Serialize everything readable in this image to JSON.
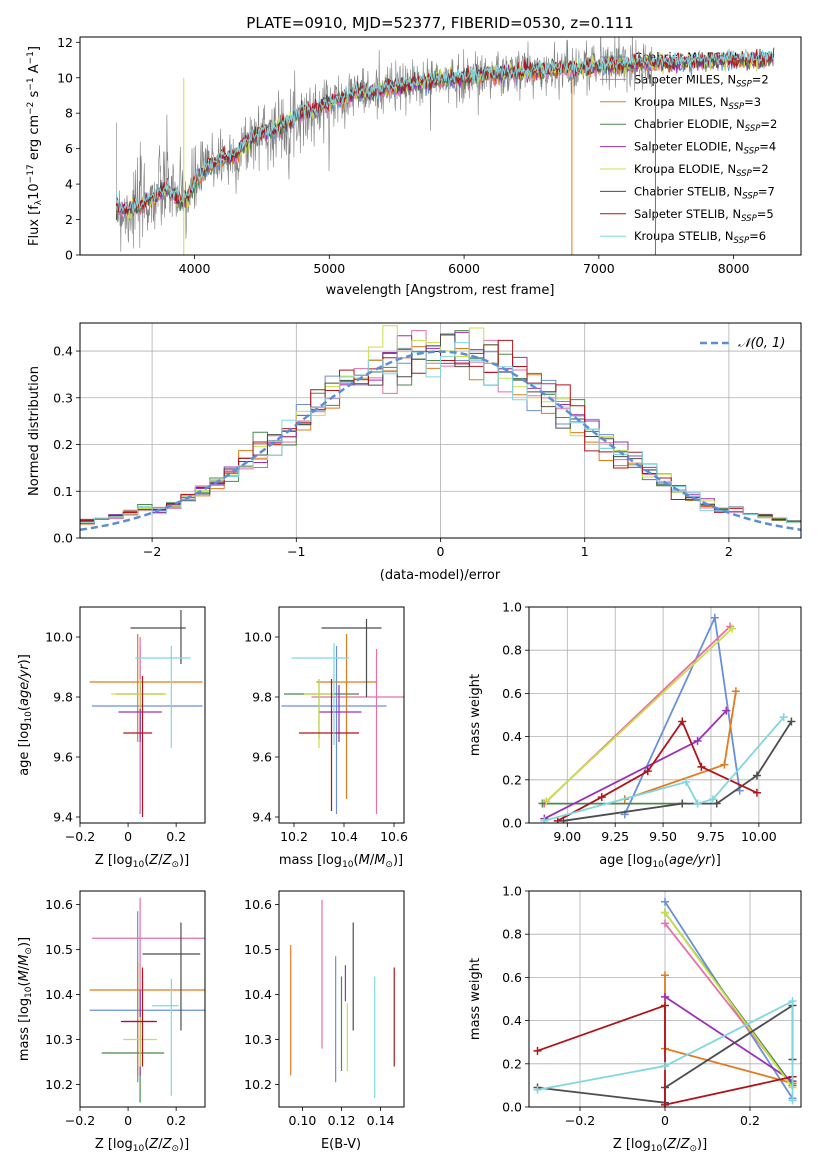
{
  "chart_data": [
    {
      "id": "spectrum",
      "type": "line",
      "title": "PLATE=0910, MJD=52377, FIBERID=0530, z=0.111",
      "xlabel": "wavelength [Angstrom, rest frame]",
      "ylabel": "Flux [f_λ10^-17 erg cm^-2 s^-1 A^-1]",
      "xlim": [
        3150,
        8500
      ],
      "ylim": [
        0,
        12.3
      ],
      "xticks": [
        4000,
        5000,
        6000,
        7000,
        8000
      ],
      "yticks": [
        0,
        2,
        4,
        6,
        8,
        10,
        12
      ],
      "spectrum": {
        "name": "data",
        "color": "#7f7f7f",
        "x": [
          3420,
          3500,
          3600,
          3700,
          3800,
          3900,
          3950,
          4000,
          4100,
          4200,
          4300,
          4400,
          4500,
          4600,
          4700,
          4800,
          4900,
          5000,
          5100,
          5200,
          5300,
          5400,
          5500,
          5600,
          5700,
          5800,
          5900,
          6000,
          6100,
          6200,
          6300,
          6400,
          6500,
          6600,
          6700,
          6800,
          6900,
          7000,
          7100,
          7200,
          7300,
          7400
        ],
        "y": [
          2.8,
          2.4,
          2.9,
          3.2,
          4.0,
          3.1,
          3.2,
          4.0,
          5.2,
          5.5,
          5.4,
          6.4,
          7.0,
          7.0,
          7.4,
          8.0,
          8.0,
          8.6,
          8.9,
          9.3,
          9.0,
          9.5,
          9.4,
          9.6,
          9.8,
          9.9,
          9.8,
          10.0,
          10.1,
          10.3,
          10.1,
          10.4,
          10.5,
          10.3,
          10.6,
          10.5,
          10.7,
          10.8,
          10.9,
          10.7,
          11.0,
          10.8
        ]
      },
      "model": {
        "x": [
          3420,
          3500,
          3600,
          3700,
          3800,
          3900,
          3950,
          4000,
          4100,
          4200,
          4300,
          4400,
          4500,
          4600,
          4700,
          4800,
          4900,
          5000,
          5100,
          5200,
          5300,
          5400,
          5500,
          5600,
          5700,
          5800,
          5900,
          6000,
          6100,
          6200,
          6300,
          6400,
          6500,
          6600,
          6700,
          6800,
          6900,
          7000,
          7100,
          7200,
          7300,
          7400,
          7500,
          7600,
          7700,
          7800,
          7900,
          8000,
          8100,
          8200,
          8300
        ],
        "y": [
          2.7,
          2.5,
          2.8,
          3.3,
          3.8,
          3.0,
          3.3,
          4.1,
          5.0,
          5.5,
          5.6,
          6.5,
          6.9,
          7.1,
          7.5,
          8.1,
          8.2,
          8.6,
          8.9,
          9.2,
          9.1,
          9.4,
          9.5,
          9.6,
          9.8,
          9.9,
          9.9,
          10.0,
          10.1,
          10.2,
          10.2,
          10.3,
          10.4,
          10.4,
          10.5,
          10.5,
          10.6,
          10.6,
          10.7,
          10.7,
          10.8,
          10.8,
          10.8,
          10.9,
          10.9,
          10.9,
          11.0,
          11.0,
          11.0,
          11.0,
          11.1
        ]
      },
      "series": [
        {
          "name": "Chabrier MILES, N_SSP=2",
          "label_main": "Chabrier MILES, N",
          "label_sub": "SSP",
          "label_end": "=2",
          "color": "#6a8fdc"
        },
        {
          "name": "Salpeter MILES, N_SSP=2",
          "label_main": "Salpeter MILES, N",
          "label_sub": "SSP",
          "label_end": "=2",
          "color": "#e86fa8"
        },
        {
          "name": "Kroupa MILES, N_SSP=3",
          "label_main": "Kroupa MILES, N",
          "label_sub": "SSP",
          "label_end": "=3",
          "color": "#e07b1f"
        },
        {
          "name": "Chabrier ELODIE, N_SSP=2",
          "label_main": "Chabrier ELODIE, N",
          "label_sub": "SSP",
          "label_end": "=2",
          "color": "#4a8a4a"
        },
        {
          "name": "Salpeter ELODIE, N_SSP=4",
          "label_main": "Salpeter ELODIE, N",
          "label_sub": "SSP",
          "label_end": "=4",
          "color": "#9b30b8"
        },
        {
          "name": "Kroupa ELODIE, N_SSP=2",
          "label_main": "Kroupa ELODIE, N",
          "label_sub": "SSP",
          "label_end": "=2",
          "color": "#c8e04a"
        },
        {
          "name": "Chabrier STELIB, N_SSP=7",
          "label_main": "Chabrier STELIB, N",
          "label_sub": "SSP",
          "label_end": "=7",
          "color": "#4d4d4d"
        },
        {
          "name": "Salpeter STELIB, N_SSP=5",
          "label_main": "Salpeter STELIB, N",
          "label_sub": "SSP",
          "label_end": "=5",
          "color": "#b0141c"
        },
        {
          "name": "Kroupa STELIB, N_SSP=6",
          "label_main": "Kroupa STELIB, N",
          "label_sub": "SSP",
          "label_end": "=6",
          "color": "#7fd8e0"
        }
      ],
      "legend": "right"
    },
    {
      "id": "residuals",
      "type": "histogram",
      "xlabel": "(data-model)/error",
      "ylabel": "Normed distribution",
      "xlim": [
        -2.5,
        2.5
      ],
      "ylim": [
        0,
        0.46
      ],
      "xticks": [
        -2,
        -1,
        0,
        1,
        2
      ],
      "yticks": [
        0.0,
        0.1,
        0.2,
        0.3,
        0.4
      ],
      "grid": true,
      "bin_edges": [
        -2.5,
        -2.4,
        -2.3,
        -2.2,
        -2.1,
        -2.0,
        -1.9,
        -1.8,
        -1.7,
        -1.6,
        -1.5,
        -1.4,
        -1.3,
        -1.2,
        -1.1,
        -1.0,
        -0.9,
        -0.8,
        -0.7,
        -0.6,
        -0.5,
        -0.4,
        -0.3,
        -0.2,
        -0.1,
        0.0,
        0.1,
        0.2,
        0.3,
        0.4,
        0.5,
        0.6,
        0.7,
        0.8,
        0.9,
        1.0,
        1.1,
        1.2,
        1.3,
        1.4,
        1.5,
        1.6,
        1.7,
        1.8,
        1.9,
        2.0,
        2.1,
        2.2,
        2.3,
        2.4,
        2.5
      ],
      "reference": {
        "name": "N(0,1)",
        "label": "𝒩(0, 1)",
        "color": "#5b8ed8"
      },
      "legend": "top-right"
    },
    {
      "id": "age-vs-Z",
      "type": "errorbar",
      "xlabel": "Z [log10(Z/Z⊙)]",
      "ylabel": "age [log10(age/yr)]",
      "xlim": [
        -0.2,
        0.32
      ],
      "ylim": [
        9.38,
        10.1
      ],
      "xticks": [
        -0.2,
        0.0,
        0.2
      ],
      "yticks": [
        9.4,
        9.6,
        9.8,
        10.0
      ],
      "points": [
        {
          "x": 0.05,
          "xerr": [
            0.2,
            0.26
          ],
          "y": 9.77,
          "yerr": [
            0.36,
            0.2
          ]
        },
        {
          "x": 0.05,
          "xerr": [
            0.0,
            0.0
          ],
          "y": 9.93,
          "yerr": [
            0.51,
            0.07
          ]
        },
        {
          "x": 0.04,
          "xerr": [
            0.2,
            0.27
          ],
          "y": 9.85,
          "yerr": [
            0.2,
            0.16
          ]
        },
        {
          "x": 0.05,
          "xerr": [
            0.1,
            0.1
          ],
          "y": 9.81,
          "yerr": [
            0.15,
            0.05
          ]
        },
        {
          "x": 0.05,
          "xerr": [
            0.09,
            0.09
          ],
          "y": 9.75,
          "yerr": [
            0.1,
            0.09
          ]
        },
        {
          "x": 0.05,
          "xerr": [
            0.12,
            0.11
          ],
          "y": 9.81,
          "yerr": [
            0.05,
            0.05
          ]
        },
        {
          "x": 0.22,
          "xerr": [
            0.21,
            0.02
          ],
          "y": 10.03,
          "yerr": [
            0.12,
            0.06
          ]
        },
        {
          "x": 0.06,
          "xerr": [
            0.08,
            0.04
          ],
          "y": 9.68,
          "yerr": [
            0.28,
            0.19
          ]
        },
        {
          "x": 0.18,
          "xerr": [
            0.15,
            0.08
          ],
          "y": 9.93,
          "yerr": [
            0.3,
            0.04
          ]
        }
      ]
    },
    {
      "id": "age-vs-mass",
      "type": "errorbar",
      "xlabel": "mass [log10(M/M⊙)]",
      "ylabel": "",
      "xlim": [
        10.14,
        10.64
      ],
      "ylim": [
        9.38,
        10.1
      ],
      "xticks": [
        10.2,
        10.4,
        10.6
      ],
      "yticks": [
        9.4,
        9.6,
        9.8,
        10.0
      ],
      "points": [
        {
          "x": 10.37,
          "xerr": [
            0.22,
            0.2
          ],
          "y": 9.77,
          "yerr": [
            0.36,
            0.2
          ]
        },
        {
          "x": 10.53,
          "xerr": [
            0.26,
            0.12
          ],
          "y": 9.8,
          "yerr": [
            0.39,
            0.16
          ]
        },
        {
          "x": 10.41,
          "xerr": [
            0.12,
            0.12
          ],
          "y": 9.85,
          "yerr": [
            0.39,
            0.16
          ]
        },
        {
          "x": 10.3,
          "xerr": [
            0.14,
            0.16
          ],
          "y": 9.81,
          "yerr": [
            0.15,
            0.05
          ]
        },
        {
          "x": 10.38,
          "xerr": [
            0.08,
            0.09
          ],
          "y": 9.75,
          "yerr": [
            0.1,
            0.09
          ]
        },
        {
          "x": 10.3,
          "xerr": [
            0.06,
            0.06
          ],
          "y": 9.81,
          "yerr": [
            0.18,
            0.05
          ]
        },
        {
          "x": 10.49,
          "xerr": [
            0.18,
            0.06
          ],
          "y": 10.03,
          "yerr": [
            0.23,
            0.03
          ]
        },
        {
          "x": 10.35,
          "xerr": [
            0.13,
            0.11
          ],
          "y": 9.68,
          "yerr": [
            0.26,
            0.18
          ]
        },
        {
          "x": 10.36,
          "xerr": [
            0.17,
            0.06
          ],
          "y": 9.93,
          "yerr": [
            0.29,
            0.05
          ]
        }
      ]
    },
    {
      "id": "weight-vs-age",
      "type": "line",
      "xlabel": "age [log10(age/yr)]",
      "ylabel": "mass weight",
      "xlim": [
        8.8,
        10.22
      ],
      "ylim": [
        0,
        1.0
      ],
      "xticks": [
        9.0,
        9.25,
        9.5,
        9.75,
        10.0
      ],
      "xtick_labels": [
        "9.00",
        "9.25",
        "9.50",
        "9.75",
        "10.00"
      ],
      "yticks": [
        0.0,
        0.2,
        0.4,
        0.6,
        0.8,
        1.0
      ],
      "grid": true,
      "series": [
        {
          "x": [
            9.3,
            9.77,
            9.9
          ],
          "y": [
            0.04,
            0.95,
            0.15
          ]
        },
        {
          "x": [
            8.88,
            9.85
          ],
          "y": [
            0.09,
            0.91
          ]
        },
        {
          "x": [
            9.3,
            9.82,
            9.88
          ],
          "y": [
            0.11,
            0.27,
            0.61
          ]
        },
        {
          "x": [
            8.87,
            9.6
          ],
          "y": [
            0.09,
            0.09
          ]
        },
        {
          "x": [
            8.88,
            9.68,
            9.83
          ],
          "y": [
            0.02,
            0.38,
            0.52
          ]
        },
        {
          "x": [
            8.89,
            9.86
          ],
          "y": [
            0.1,
            0.9
          ]
        },
        {
          "x": [
            8.98,
            9.6,
            9.78,
            9.99,
            10.17
          ],
          "y": [
            0.01,
            0.09,
            0.09,
            0.22,
            0.47
          ]
        },
        {
          "x": [
            8.95,
            9.18,
            9.42,
            9.6,
            9.7,
            9.99
          ],
          "y": [
            0.01,
            0.12,
            0.24,
            0.47,
            0.26,
            0.14
          ]
        },
        {
          "x": [
            8.88,
            9.62,
            9.68,
            9.76,
            10.13
          ],
          "y": [
            0.01,
            0.19,
            0.09,
            0.11,
            0.49
          ]
        }
      ]
    },
    {
      "id": "mass-vs-Z",
      "type": "errorbar",
      "xlabel": "Z [log10(Z/Z⊙)]",
      "ylabel": "mass [log10(M/M⊙)]",
      "xlim": [
        -0.2,
        0.32
      ],
      "ylim": [
        10.15,
        10.63
      ],
      "xticks": [
        -0.2,
        0.0,
        0.2
      ],
      "yticks": [
        10.2,
        10.3,
        10.4,
        10.5,
        10.6
      ],
      "points": [
        {
          "x": 0.04,
          "xerr": [
            0.2,
            0.28
          ],
          "y": 10.365,
          "yerr": [
            0.16,
            0.22
          ]
        },
        {
          "x": 0.05,
          "xerr": [
            0.2,
            0.27
          ],
          "y": 10.525,
          "yerr": [
            0.28,
            0.09
          ]
        },
        {
          "x": 0.04,
          "xerr": [
            0.2,
            0.28
          ],
          "y": 10.41,
          "yerr": [
            0.19,
            0.06
          ]
        },
        {
          "x": 0.05,
          "xerr": [
            0.16,
            0.1
          ],
          "y": 10.27,
          "yerr": [
            0.11,
            0.14
          ]
        },
        {
          "x": 0.05,
          "xerr": [
            0.07,
            0.06
          ],
          "y": 10.34,
          "yerr": [
            0.12,
            0.07
          ]
        },
        {
          "x": 0.05,
          "xerr": [
            0.07,
            0.07
          ],
          "y": 10.3,
          "yerr": [
            0.06,
            0.05
          ]
        },
        {
          "x": 0.22,
          "xerr": [
            0.16,
            0.08
          ],
          "y": 10.49,
          "yerr": [
            0.17,
            0.07
          ]
        },
        {
          "x": 0.06,
          "xerr": [
            0.09,
            0.06
          ],
          "y": 10.34,
          "yerr": [
            0.1,
            0.12
          ]
        },
        {
          "x": 0.18,
          "xerr": [
            0.08,
            0.03
          ],
          "y": 10.375,
          "yerr": [
            0.2,
            0.06
          ]
        }
      ]
    },
    {
      "id": "mass-vs-ebv",
      "type": "errorbar",
      "xlabel": "E(B-V)",
      "ylabel": "",
      "xlim": [
        0.088,
        0.152
      ],
      "ylim": [
        10.15,
        10.63
      ],
      "xticks": [
        0.1,
        0.12,
        0.14
      ],
      "xtick_labels": [
        "0.10",
        "0.12",
        "0.14"
      ],
      "yticks": [
        10.2,
        10.3,
        10.4,
        10.5,
        10.6
      ],
      "points": [
        {
          "x": 0.117,
          "y": 10.365,
          "yerr": [
            0.16,
            0.12
          ]
        },
        {
          "x": 0.11,
          "y": 10.44,
          "yerr": [
            0.16,
            0.17
          ]
        },
        {
          "x": 0.094,
          "y": 10.37,
          "yerr": [
            0.15,
            0.14
          ]
        },
        {
          "x": 0.12,
          "y": 10.33,
          "yerr": [
            0.1,
            0.11
          ]
        },
        {
          "x": 0.122,
          "y": 10.425,
          "yerr": [
            0.04,
            0.04
          ]
        },
        {
          "x": 0.123,
          "y": 10.3,
          "yerr": [
            0.07,
            0.08
          ]
        },
        {
          "x": 0.126,
          "y": 10.44,
          "yerr": [
            0.12,
            0.12
          ]
        },
        {
          "x": 0.147,
          "y": 10.35,
          "yerr": [
            0.11,
            0.11
          ]
        },
        {
          "x": 0.137,
          "y": 10.3,
          "yerr": [
            0.13,
            0.14
          ]
        }
      ]
    },
    {
      "id": "weight-vs-Z",
      "type": "line",
      "xlabel": "Z [log10(Z/Z⊙)]",
      "ylabel": "mass weight",
      "xlim": [
        -0.32,
        0.32
      ],
      "ylim": [
        0,
        1.0
      ],
      "xticks": [
        -0.2,
        0.0,
        0.2
      ],
      "yticks": [
        0.0,
        0.2,
        0.4,
        0.6,
        0.8,
        1.0
      ],
      "grid": true,
      "series": [
        {
          "x": [
            0.0,
            0.3
          ],
          "y": [
            0.95,
            0.04
          ]
        },
        {
          "x": [
            0.0,
            0.3
          ],
          "y": [
            0.85,
            0.1
          ]
        },
        {
          "x": [
            0.0,
            0.0,
            0.3
          ],
          "y": [
            0.61,
            0.27,
            0.11
          ]
        },
        {
          "x": [
            0.0,
            0.3
          ],
          "y": [
            0.9,
            0.1
          ]
        },
        {
          "x": [
            0.0,
            0.3
          ],
          "y": [
            0.51,
            0.12
          ]
        },
        {
          "x": [
            0.0,
            0.3
          ],
          "y": [
            0.9,
            0.09
          ]
        },
        {
          "x": [
            -0.3,
            0.0,
            0.0,
            0.3,
            0.3
          ],
          "y": [
            0.09,
            0.02,
            0.09,
            0.47,
            0.22
          ]
        },
        {
          "x": [
            -0.3,
            0.0,
            0.0,
            0.3
          ],
          "y": [
            0.26,
            0.47,
            0.01,
            0.14
          ]
        },
        {
          "x": [
            -0.3,
            0.0,
            0.3,
            0.3
          ],
          "y": [
            0.08,
            0.19,
            0.49,
            0.03
          ]
        }
      ]
    }
  ]
}
